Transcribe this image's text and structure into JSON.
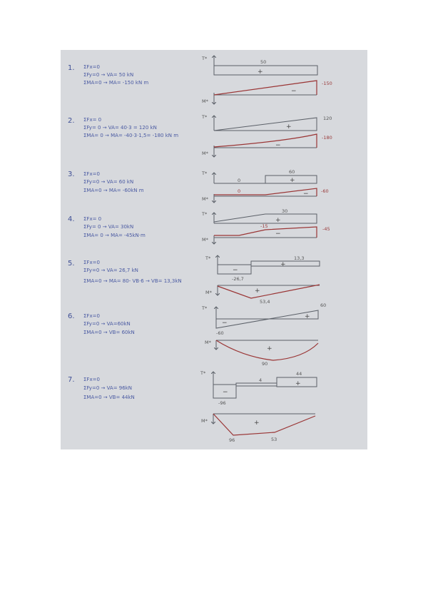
{
  "problems": [
    {
      "number": "1.",
      "eq": [
        "ΣFx=0",
        "ΣFy=0 → VA= 50 kN",
        "ΣMA=0 → MA= -150 kN m"
      ],
      "t_label": "T*",
      "m_label": "M*",
      "t_values": [
        "50"
      ],
      "m_values": [
        "-150"
      ],
      "t_signs": [
        "+"
      ],
      "m_signs": [
        "−"
      ]
    },
    {
      "number": "2.",
      "eq": [
        "ΣFx= 0",
        "ΣFy= 0 → VA= 40·3 = 120 kN",
        "ΣMA= 0 → MA= -40·3·1,5= -180 kN m"
      ],
      "t_label": "T*",
      "m_label": "M*",
      "t_values": [
        "120"
      ],
      "m_values": [
        "-180"
      ],
      "t_signs": [
        "+"
      ],
      "m_signs": [
        "−"
      ]
    },
    {
      "number": "3.",
      "eq": [
        "ΣFx=0",
        "ΣFy=0 → VA= 60 kN",
        "ΣMA=0 → MA= -60kN m"
      ],
      "t_label": "T*",
      "m_label": "M*",
      "t_values": [
        "0",
        "60"
      ],
      "m_values": [
        "0",
        "-60"
      ],
      "t_signs": [
        "+"
      ],
      "m_signs": [
        "−"
      ]
    },
    {
      "number": "4.",
      "eq": [
        "ΣFx= 0",
        "ΣFy= 0 → VA= 30kN",
        "ΣMA= 0 → MA= -45kN·m"
      ],
      "t_label": "T*",
      "m_label": "M*",
      "t_values": [
        "30"
      ],
      "m_values": [
        "-15",
        "-45"
      ],
      "t_signs": [
        "+"
      ],
      "m_signs": [
        "−"
      ]
    },
    {
      "number": "5.",
      "eq": [
        "ΣFx=0",
        "ΣFy=0 → VA= 26,7 kN",
        "ΣMA=0 → MA= 80- VB·6 → VB= 13,3kN"
      ],
      "t_label": "T*",
      "m_label": "M*",
      "t_values": [
        "13,3",
        "-26,7"
      ],
      "m_values": [
        "53,4"
      ],
      "t_signs": [
        "+",
        "−"
      ],
      "m_signs": [
        "+"
      ]
    },
    {
      "number": "6.",
      "eq": [
        "ΣFx=0",
        "ΣFy=0 → VA=60kN",
        "ΣMA=0 → VB= 60kN"
      ],
      "t_label": "T*",
      "m_label": "M*",
      "t_values": [
        "60",
        "-60"
      ],
      "m_values": [
        "90"
      ],
      "t_signs": [
        "+",
        "−"
      ],
      "m_signs": [
        "+"
      ]
    },
    {
      "number": "7.",
      "eq": [
        "ΣFx=0",
        "ΣFy=0 → VA= 96kN",
        "ΣMA=0 → VB= 44kN"
      ],
      "t_label": "T*",
      "m_label": "M*",
      "t_values": [
        "44",
        "4",
        "-96"
      ],
      "m_values": [
        "96",
        "53"
      ],
      "t_signs": [
        "+",
        "−"
      ],
      "m_signs": [
        "+"
      ]
    }
  ],
  "colors": {
    "paper": "#d7d9dd",
    "ink_blue": "#4a5aa2",
    "ink_grey": "#5b6068",
    "ink_red": "#9a3535"
  }
}
